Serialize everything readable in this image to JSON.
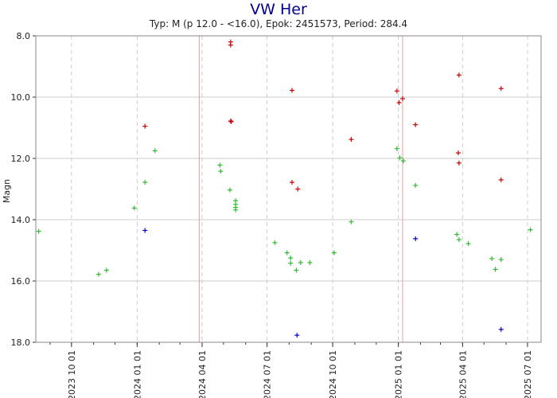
{
  "chart_data": {
    "type": "scatter",
    "title": "VW Her",
    "subtitle": "Typ: M (p 12.0 - <16.0), Epok: 2451573, Period: 284.4",
    "ylabel": "Magn",
    "xlabel": "",
    "y_inverted": true,
    "ylim": [
      8.0,
      18.0
    ],
    "xlim": [
      "2023-08-12",
      "2025-07-20"
    ],
    "y_ticks": [
      "8.0",
      "10.0",
      "12.0",
      "14.0",
      "16.0",
      "18.0"
    ],
    "x_ticks": [
      "2023 10 01",
      "2024 01 01",
      "2024 04 01",
      "2024 07 01",
      "2024 10 01",
      "2025 01 01",
      "2025 04 01",
      "2025 07 01"
    ],
    "grid": true,
    "marker": "+",
    "colors": {
      "red": "#cc0000",
      "green": "#33bb33",
      "blue": "#0000cc",
      "title": "#00008b",
      "grid_major": "#cccccc",
      "epoch_line": "#e0a0a0"
    },
    "epoch_lines": [
      "2024-03-28",
      "2025-01-07"
    ],
    "series": [
      {
        "color": "red",
        "points": [
          {
            "x": "2024-01-12",
            "y": 10.95
          },
          {
            "x": "2024-05-11",
            "y": 8.2
          },
          {
            "x": "2024-05-11",
            "y": 8.3
          },
          {
            "x": "2024-05-11",
            "y": 10.78
          },
          {
            "x": "2024-05-12",
            "y": 10.8
          },
          {
            "x": "2024-08-05",
            "y": 9.78
          },
          {
            "x": "2024-08-05",
            "y": 12.78
          },
          {
            "x": "2024-08-13",
            "y": 13.0
          },
          {
            "x": "2024-10-27",
            "y": 11.38
          },
          {
            "x": "2024-12-30",
            "y": 9.8
          },
          {
            "x": "2025-01-02",
            "y": 10.18
          },
          {
            "x": "2025-01-07",
            "y": 10.05
          },
          {
            "x": "2025-01-25",
            "y": 10.9
          },
          {
            "x": "2025-03-27",
            "y": 9.28
          },
          {
            "x": "2025-03-26",
            "y": 11.82
          },
          {
            "x": "2025-03-27",
            "y": 12.15
          },
          {
            "x": "2025-05-25",
            "y": 9.72
          },
          {
            "x": "2025-05-25",
            "y": 12.7
          }
        ]
      },
      {
        "color": "green",
        "points": [
          {
            "x": "2023-08-16",
            "y": 14.38
          },
          {
            "x": "2023-11-08",
            "y": 15.78
          },
          {
            "x": "2023-11-19",
            "y": 15.65
          },
          {
            "x": "2023-12-28",
            "y": 13.62
          },
          {
            "x": "2024-01-12",
            "y": 12.78
          },
          {
            "x": "2024-01-26",
            "y": 11.75
          },
          {
            "x": "2024-04-26",
            "y": 12.22
          },
          {
            "x": "2024-04-27",
            "y": 12.42
          },
          {
            "x": "2024-05-10",
            "y": 13.03
          },
          {
            "x": "2024-05-18",
            "y": 13.38
          },
          {
            "x": "2024-05-18",
            "y": 13.5
          },
          {
            "x": "2024-05-18",
            "y": 13.6
          },
          {
            "x": "2024-05-18",
            "y": 13.68
          },
          {
            "x": "2024-07-12",
            "y": 14.75
          },
          {
            "x": "2024-07-29",
            "y": 15.08
          },
          {
            "x": "2024-08-03",
            "y": 15.25
          },
          {
            "x": "2024-08-03",
            "y": 15.42
          },
          {
            "x": "2024-08-11",
            "y": 15.65
          },
          {
            "x": "2024-08-17",
            "y": 15.4
          },
          {
            "x": "2024-08-30",
            "y": 15.4
          },
          {
            "x": "2024-10-03",
            "y": 15.08
          },
          {
            "x": "2024-10-27",
            "y": 14.07
          },
          {
            "x": "2024-12-30",
            "y": 11.68
          },
          {
            "x": "2025-01-03",
            "y": 11.98
          },
          {
            "x": "2025-01-08",
            "y": 12.08
          },
          {
            "x": "2025-01-25",
            "y": 12.88
          },
          {
            "x": "2025-03-24",
            "y": 14.48
          },
          {
            "x": "2025-03-27",
            "y": 14.65
          },
          {
            "x": "2025-04-09",
            "y": 14.78
          },
          {
            "x": "2025-05-12",
            "y": 15.27
          },
          {
            "x": "2025-05-17",
            "y": 15.62
          },
          {
            "x": "2025-05-25",
            "y": 15.3
          },
          {
            "x": "2025-07-05",
            "y": 14.33
          }
        ]
      },
      {
        "color": "blue",
        "points": [
          {
            "x": "2024-01-12",
            "y": 14.35
          },
          {
            "x": "2024-08-12",
            "y": 17.77
          },
          {
            "x": "2025-01-25",
            "y": 14.62
          },
          {
            "x": "2025-05-25",
            "y": 17.58
          }
        ]
      }
    ]
  }
}
